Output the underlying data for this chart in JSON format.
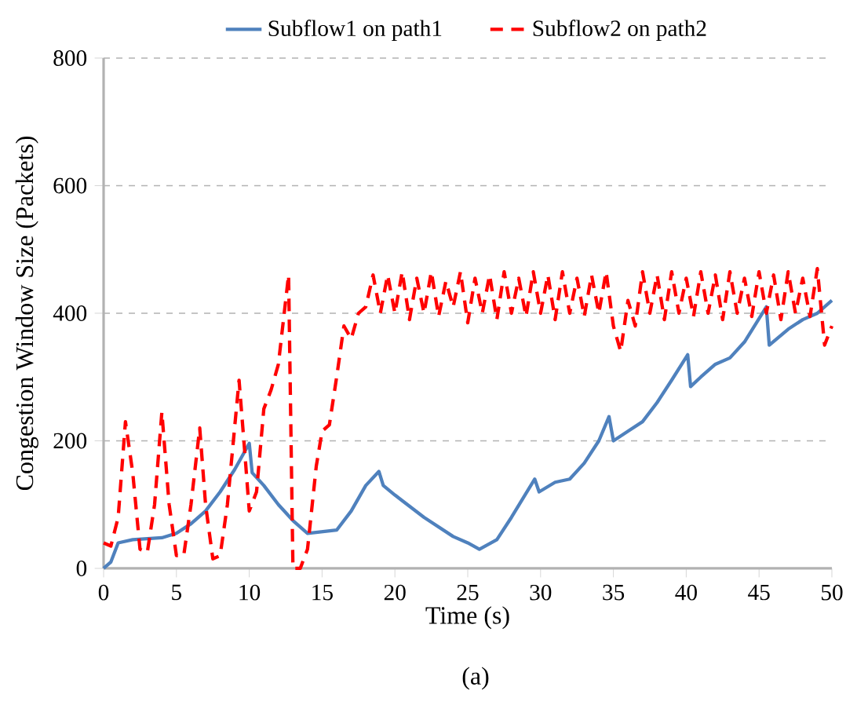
{
  "chart_data": {
    "type": "line",
    "xlabel": "Time (s)",
    "ylabel": "Congestion Window Size (Packets)",
    "annotations": [
      "(a)"
    ],
    "xlim": [
      0,
      50
    ],
    "xticks": [
      0,
      5,
      10,
      15,
      20,
      25,
      30,
      35,
      40,
      45,
      50
    ],
    "ylim": [
      0,
      800
    ],
    "yticks": [
      0,
      200,
      400,
      600,
      800
    ],
    "grid": "y",
    "legend": "top",
    "series": [
      {
        "name": "Subflow1 on path1",
        "color": "#4f81bd",
        "line_style": "solid",
        "x": [
          0,
          0.5,
          1,
          2,
          4,
          5,
          6,
          7,
          8,
          9,
          10,
          10.2,
          11,
          12,
          13,
          14,
          16,
          17,
          18,
          18.9,
          19.2,
          20,
          22,
          24,
          25,
          25.8,
          27,
          28,
          29.6,
          29.9,
          31,
          32,
          33,
          34,
          34.7,
          35,
          36,
          37,
          38,
          39,
          40.1,
          40.3,
          41,
          42,
          43,
          44,
          45.5,
          45.7,
          47,
          48,
          49,
          50
        ],
        "values": [
          0,
          10,
          40,
          45,
          48,
          55,
          70,
          90,
          120,
          155,
          196,
          150,
          130,
          100,
          75,
          55,
          60,
          90,
          130,
          152,
          130,
          115,
          80,
          50,
          40,
          30,
          45,
          80,
          140,
          120,
          135,
          140,
          165,
          200,
          238,
          200,
          215,
          230,
          260,
          295,
          335,
          285,
          300,
          320,
          330,
          355,
          410,
          350,
          375,
          390,
          400,
          420
        ]
      },
      {
        "name": "Subflow2 on path2",
        "color": "#ff0000",
        "line_style": "dashed",
        "x": [
          0,
          0.5,
          1,
          1.5,
          2,
          2.5,
          3,
          3.5,
          4,
          4.5,
          5,
          5.5,
          6,
          6.6,
          7,
          7.5,
          8,
          8.5,
          9.3,
          9.7,
          10,
          10.5,
          11,
          11.5,
          12,
          12.7,
          13,
          13.5,
          14,
          14.6,
          15,
          15.5,
          16,
          16.5,
          17,
          17.5,
          18,
          18.5,
          19,
          19.5,
          20,
          20.5,
          21,
          21.5,
          22,
          22.5,
          23,
          23.5,
          24,
          24.5,
          25,
          25.5,
          26,
          26.5,
          27,
          27.5,
          28,
          28.5,
          29,
          29.5,
          30,
          30.5,
          31,
          31.5,
          32,
          32.5,
          33,
          33.5,
          34,
          34.5,
          35,
          35.5,
          36,
          36.5,
          37,
          37.5,
          38,
          38.5,
          39,
          39.5,
          40,
          40.5,
          41,
          41.5,
          42,
          42.5,
          43,
          43.5,
          44,
          44.5,
          45,
          45.5,
          46,
          46.5,
          47,
          47.5,
          48,
          48.5,
          49,
          49.5,
          50
        ],
        "values": [
          40,
          35,
          80,
          230,
          150,
          30,
          25,
          100,
          245,
          100,
          20,
          20,
          100,
          220,
          100,
          15,
          20,
          100,
          295,
          180,
          90,
          120,
          250,
          280,
          320,
          460,
          0,
          0,
          30,
          160,
          215,
          225,
          300,
          380,
          360,
          400,
          410,
          460,
          400,
          460,
          400,
          465,
          390,
          455,
          400,
          465,
          395,
          450,
          410,
          465,
          385,
          455,
          400,
          460,
          390,
          465,
          400,
          455,
          395,
          465,
          400,
          460,
          390,
          465,
          400,
          455,
          395,
          460,
          400,
          465,
          380,
          340,
          420,
          380,
          465,
          400,
          460,
          390,
          465,
          400,
          455,
          395,
          465,
          400,
          460,
          390,
          465,
          400,
          455,
          395,
          465,
          400,
          460,
          390,
          465,
          400,
          455,
          395,
          470,
          350,
          380
        ]
      }
    ]
  }
}
